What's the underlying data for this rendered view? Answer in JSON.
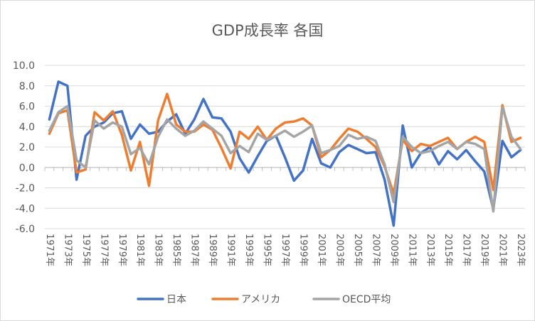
{
  "chart_data": {
    "type": "line",
    "title": "GDP成長率 各国",
    "xlabel": "",
    "ylabel": "",
    "ylim": [
      -6.0,
      10.0
    ],
    "yticks": [
      "10.0",
      "8.0",
      "6.0",
      "4.0",
      "2.0",
      "0.0",
      "-2.0",
      "-4.0",
      "-6.0"
    ],
    "ytick_values": [
      10,
      8,
      6,
      4,
      2,
      0,
      -2,
      -4,
      -6
    ],
    "x": [
      1971,
      1972,
      1973,
      1974,
      1975,
      1976,
      1977,
      1978,
      1979,
      1980,
      1981,
      1982,
      1983,
      1984,
      1985,
      1986,
      1987,
      1988,
      1989,
      1990,
      1991,
      1992,
      1993,
      1994,
      1995,
      1996,
      1997,
      1998,
      1999,
      2000,
      2001,
      2002,
      2003,
      2004,
      2005,
      2006,
      2007,
      2008,
      2009,
      2010,
      2011,
      2012,
      2013,
      2014,
      2015,
      2016,
      2017,
      2018,
      2019,
      2020,
      2021,
      2022,
      2023
    ],
    "xtick_labels": [
      "1971年",
      "1973年",
      "1975年",
      "1977年",
      "1979年",
      "1981年",
      "1983年",
      "1985年",
      "1987年",
      "1989年",
      "1991年",
      "1993年",
      "1995年",
      "1997年",
      "1999年",
      "2001年",
      "2003年",
      "2005年",
      "2007年",
      "2009年",
      "2011年",
      "2013年",
      "2015年",
      "2017年",
      "2019年",
      "2021年",
      "2023年"
    ],
    "legend_position": "bottom",
    "grid": true,
    "series": [
      {
        "name": "日本",
        "color": "#4472C4",
        "values": [
          4.7,
          8.4,
          8.0,
          -1.2,
          3.1,
          4.0,
          4.4,
          5.3,
          5.5,
          2.8,
          4.2,
          3.3,
          3.5,
          4.5,
          5.2,
          3.3,
          4.7,
          6.7,
          4.9,
          4.8,
          3.5,
          0.9,
          -0.5,
          1.1,
          2.6,
          3.1,
          1.0,
          -1.3,
          -0.3,
          2.8,
          0.4,
          0.0,
          1.5,
          2.2,
          1.8,
          1.4,
          1.5,
          -1.2,
          -5.7,
          4.1,
          0.0,
          1.4,
          2.0,
          0.3,
          1.6,
          0.8,
          1.7,
          0.6,
          -0.4,
          -4.1,
          2.6,
          1.0,
          1.7
        ]
      },
      {
        "name": "アメリカ",
        "color": "#ED7D31",
        "values": [
          3.3,
          5.3,
          5.6,
          -0.5,
          -0.2,
          5.4,
          4.6,
          5.5,
          3.2,
          -0.3,
          2.5,
          -1.8,
          4.6,
          7.2,
          4.2,
          3.5,
          3.5,
          4.2,
          3.7,
          1.9,
          -0.1,
          3.5,
          2.8,
          4.0,
          2.7,
          3.8,
          4.4,
          4.5,
          4.8,
          4.1,
          1.0,
          1.7,
          2.8,
          3.8,
          3.5,
          2.8,
          2.0,
          0.1,
          -2.6,
          2.7,
          1.6,
          2.3,
          2.1,
          2.5,
          2.9,
          1.8,
          2.5,
          3.0,
          2.5,
          -2.2,
          6.1,
          2.5,
          2.9
        ]
      },
      {
        "name": "OECD平均",
        "color": "#A5A5A5",
        "values": [
          3.6,
          5.4,
          6.0,
          0.7,
          0.0,
          4.6,
          3.8,
          4.4,
          4.0,
          1.3,
          1.9,
          0.3,
          3.0,
          4.7,
          3.8,
          3.1,
          3.6,
          4.5,
          3.8,
          3.1,
          1.4,
          2.1,
          1.5,
          3.3,
          2.7,
          3.1,
          3.6,
          3.0,
          3.5,
          4.1,
          1.4,
          1.7,
          2.1,
          3.2,
          2.8,
          3.0,
          2.6,
          0.3,
          -3.4,
          3.0,
          2.0,
          1.4,
          1.6,
          2.1,
          2.5,
          1.8,
          2.5,
          2.3,
          1.8,
          -4.3,
          5.9,
          3.0,
          1.8
        ]
      }
    ]
  }
}
